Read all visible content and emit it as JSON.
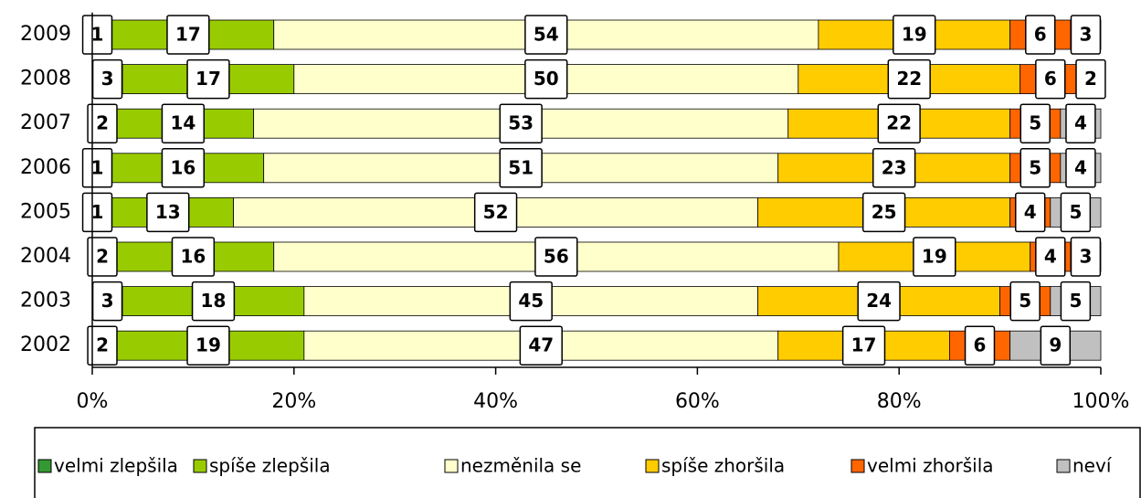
{
  "chart_data": {
    "type": "stacked-barh",
    "categories": [
      "2009",
      "2008",
      "2007",
      "2006",
      "2005",
      "2004",
      "2003",
      "2002"
    ],
    "series": [
      {
        "name": "velmi zlepšila",
        "color": "#339933",
        "values": [
          1,
          3,
          2,
          1,
          1,
          2,
          3,
          2
        ]
      },
      {
        "name": "spíše zlepšila",
        "color": "#99cc00",
        "values": [
          17,
          17,
          14,
          16,
          13,
          16,
          18,
          19
        ]
      },
      {
        "name": "nezměnila se",
        "color": "#ffffcc",
        "values": [
          54,
          50,
          53,
          51,
          52,
          56,
          45,
          47
        ]
      },
      {
        "name": "spíše zhoršila",
        "color": "#ffcc00",
        "values": [
          19,
          22,
          22,
          23,
          25,
          19,
          24,
          17
        ]
      },
      {
        "name": "velmi zhoršila",
        "color": "#ff6600",
        "values": [
          6,
          6,
          5,
          5,
          4,
          4,
          5,
          6
        ]
      },
      {
        "name": "neví",
        "color": "#c0c0c0",
        "values": [
          3,
          2,
          4,
          4,
          5,
          3,
          5,
          9
        ]
      }
    ],
    "xlim": [
      0,
      100
    ],
    "xticks": [
      {
        "value": 0,
        "label": "0%"
      },
      {
        "value": 20,
        "label": "20%"
      },
      {
        "value": 40,
        "label": "40%"
      },
      {
        "value": 60,
        "label": "60%"
      },
      {
        "value": 80,
        "label": "80%"
      },
      {
        "value": 100,
        "label": "100%"
      }
    ],
    "legend": "bottom"
  }
}
